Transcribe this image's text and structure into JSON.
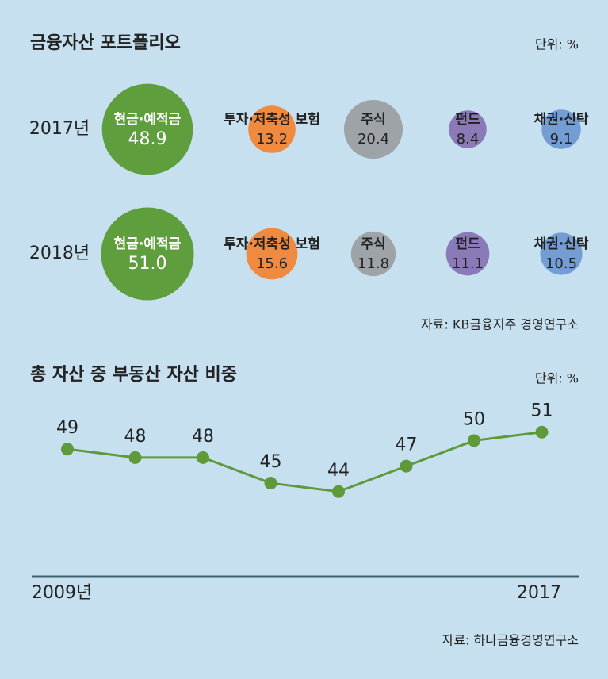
{
  "chart_data": [
    {
      "type": "bubble",
      "title": "금융자산 포트폴리오",
      "unit": "단위: %",
      "categories": [
        "현금·예적금",
        "투자·저축성 보험",
        "주식",
        "펀드",
        "채권·신탁"
      ],
      "colors": [
        "#5e9e3c",
        "#f08a3f",
        "#9ea3a8",
        "#8b7ab8",
        "#739dd3"
      ],
      "series": [
        {
          "name": "2017년",
          "values": [
            48.9,
            13.2,
            20.4,
            8.4,
            9.1
          ],
          "value_labels": [
            "48.9",
            "13.2",
            "20.4",
            "8.4",
            "9.1"
          ]
        },
        {
          "name": "2018년",
          "values": [
            51.0,
            15.6,
            11.8,
            11.1,
            10.5
          ],
          "value_labels": [
            "51.0",
            "15.6",
            "11.8",
            "11.1",
            "10.5"
          ]
        }
      ],
      "source": "자료: KB금융지주 경영연구소"
    },
    {
      "type": "line",
      "title": "총 자산 중 부동산 자산 비중",
      "unit": "단위: %",
      "categories": [
        "2009년",
        null,
        null,
        null,
        null,
        null,
        null,
        "2017"
      ],
      "values": [
        49,
        48,
        48,
        45,
        44,
        47,
        50,
        51
      ],
      "color": "#5e9a3a",
      "ylim": [
        34,
        52
      ],
      "source": "자료: 하나금융경영연구소"
    }
  ]
}
